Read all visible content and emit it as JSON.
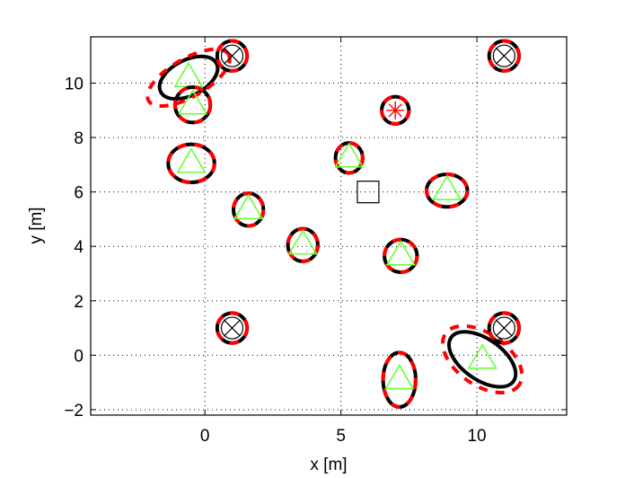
{
  "chart_data": {
    "type": "scatter",
    "xlabel": "x [m]",
    "ylabel": "y [m]",
    "xlim": [
      -4.2,
      13.3
    ],
    "ylim": [
      -2.2,
      11.7
    ],
    "x_ticks": [
      0,
      5,
      10
    ],
    "x_tick_labels": [
      "0",
      "5",
      "10"
    ],
    "y_ticks": [
      -2,
      0,
      2,
      4,
      6,
      8,
      10
    ],
    "y_tick_labels": [
      "−2",
      "0",
      "2",
      "4",
      "6",
      "8",
      "10"
    ],
    "grid": true,
    "grid_style": "dotted",
    "colors": {
      "ellipse_estimate": "#000000",
      "ellipse_reference": "#ff0000",
      "landmark_marker": "#66ff33",
      "circle_x_marker": "#000000",
      "star_marker": "#ff0000",
      "square_marker": "#000000"
    },
    "landmarks": [
      {
        "x": -0.6,
        "y": 10.2,
        "marker": "triangle",
        "ellipse": {
          "rx": 1.15,
          "ry": 0.65,
          "angle": -27
        },
        "ref_ellipse": {
          "rx": 1.7,
          "ry": 0.7,
          "angle": -30
        }
      },
      {
        "x": -0.45,
        "y": 9.2,
        "marker": "triangle",
        "ellipse": {
          "rx": 0.65,
          "ry": 0.65,
          "angle": 0
        }
      },
      {
        "x": -0.5,
        "y": 7.05,
        "marker": "triangle",
        "ellipse": {
          "rx": 0.85,
          "ry": 0.7,
          "angle": 0
        }
      },
      {
        "x": 1.6,
        "y": 5.35,
        "marker": "triangle",
        "ellipse": {
          "rx": 0.55,
          "ry": 0.6,
          "angle": 0
        }
      },
      {
        "x": 3.6,
        "y": 4.05,
        "marker": "triangle",
        "ellipse": {
          "rx": 0.55,
          "ry": 0.6,
          "angle": 0
        }
      },
      {
        "x": 5.3,
        "y": 7.25,
        "marker": "triangle",
        "ellipse": {
          "rx": 0.5,
          "ry": 0.55,
          "angle": 0
        }
      },
      {
        "x": 7.2,
        "y": 3.65,
        "marker": "triangle",
        "ellipse": {
          "rx": 0.6,
          "ry": 0.6,
          "angle": 0
        }
      },
      {
        "x": 8.9,
        "y": 6.05,
        "marker": "triangle",
        "ellipse": {
          "rx": 0.75,
          "ry": 0.6,
          "angle": 0
        }
      },
      {
        "x": 7.15,
        "y": -0.9,
        "marker": "triangle",
        "ellipse": {
          "rx": 0.6,
          "ry": 1.0,
          "angle": 0
        }
      },
      {
        "x": 10.2,
        "y": -0.15,
        "marker": "triangle",
        "ellipse": {
          "rx": 1.4,
          "ry": 0.75,
          "angle": 35
        },
        "ref_ellipse": {
          "rx": 1.65,
          "ry": 0.95,
          "angle": 35
        }
      }
    ],
    "fixed_points": [
      {
        "x": 1.0,
        "y": 11.0,
        "marker": "circle-x"
      },
      {
        "x": 11.0,
        "y": 11.0,
        "marker": "circle-x"
      },
      {
        "x": 1.0,
        "y": 1.0,
        "marker": "circle-x"
      },
      {
        "x": 11.0,
        "y": 1.0,
        "marker": "circle-x"
      },
      {
        "x": 7.0,
        "y": 9.0,
        "marker": "circle-star"
      },
      {
        "x": 6.0,
        "y": 6.0,
        "marker": "square"
      }
    ]
  }
}
